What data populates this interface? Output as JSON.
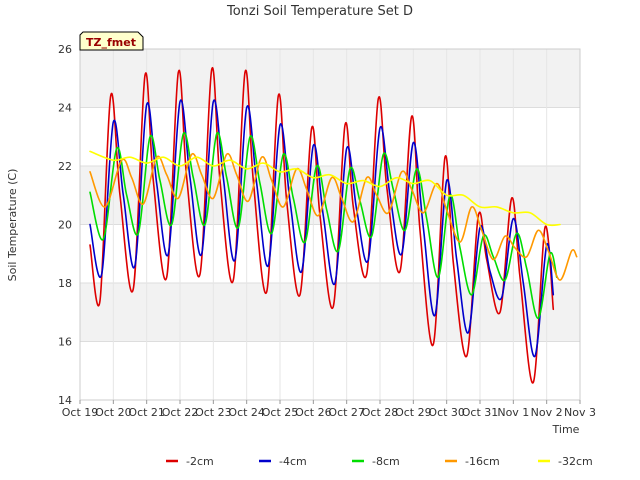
{
  "chart_data": {
    "type": "line",
    "title": "Tonzi Soil Temperature Set D",
    "xlabel": "Time",
    "ylabel": "Soil Temperature (C)",
    "badge": "TZ_fmet",
    "ylim": [
      14,
      26
    ],
    "yticks": [
      14,
      16,
      18,
      20,
      22,
      24,
      26
    ],
    "xlim": [
      0,
      15
    ],
    "xticks": [
      {
        "x": 0,
        "label": "Oct 19"
      },
      {
        "x": 1,
        "label": "Oct 20"
      },
      {
        "x": 2,
        "label": "Oct 21"
      },
      {
        "x": 3,
        "label": "Oct 22"
      },
      {
        "x": 4,
        "label": "Oct 23"
      },
      {
        "x": 5,
        "label": "Oct 24"
      },
      {
        "x": 6,
        "label": "Oct 25"
      },
      {
        "x": 7,
        "label": "Oct 26"
      },
      {
        "x": 8,
        "label": "Oct 27"
      },
      {
        "x": 9,
        "label": "Oct 28"
      },
      {
        "x": 10,
        "label": "Oct 29"
      },
      {
        "x": 11,
        "label": "Oct 30"
      },
      {
        "x": 12,
        "label": "Oct 31"
      },
      {
        "x": 13,
        "label": "Nov 1"
      },
      {
        "x": 14,
        "label": "Nov 2"
      },
      {
        "x": 15,
        "label": "Nov 3"
      }
    ],
    "grid": true,
    "legend_placement": "bottom",
    "series": [
      {
        "name": "-2cm",
        "color": "#dd0000",
        "points": [
          [
            0.3,
            19.3
          ],
          [
            0.6,
            17.4
          ],
          [
            0.92,
            24.4
          ],
          [
            1.2,
            21.0
          ],
          [
            1.6,
            17.8
          ],
          [
            1.95,
            25.1
          ],
          [
            2.2,
            21.5
          ],
          [
            2.6,
            18.2
          ],
          [
            2.95,
            25.2
          ],
          [
            3.2,
            21.6
          ],
          [
            3.6,
            18.3
          ],
          [
            3.95,
            25.3
          ],
          [
            4.2,
            21.5
          ],
          [
            4.6,
            18.1
          ],
          [
            4.95,
            25.2
          ],
          [
            5.2,
            21.5
          ],
          [
            5.6,
            17.7
          ],
          [
            5.95,
            24.4
          ],
          [
            6.2,
            20.8
          ],
          [
            6.6,
            17.6
          ],
          [
            6.95,
            23.3
          ],
          [
            7.2,
            20.3
          ],
          [
            7.6,
            17.2
          ],
          [
            7.95,
            23.4
          ],
          [
            8.2,
            20.6
          ],
          [
            8.6,
            18.3
          ],
          [
            8.95,
            24.3
          ],
          [
            9.2,
            21.3
          ],
          [
            9.6,
            18.4
          ],
          [
            9.95,
            23.7
          ],
          [
            10.2,
            19.8
          ],
          [
            10.6,
            15.9
          ],
          [
            10.95,
            22.3
          ],
          [
            11.2,
            18.7
          ],
          [
            11.6,
            15.5
          ],
          [
            11.95,
            20.3
          ],
          [
            12.2,
            18.8
          ],
          [
            12.6,
            17.0
          ],
          [
            12.95,
            20.9
          ],
          [
            13.2,
            18.2
          ],
          [
            13.6,
            14.6
          ],
          [
            13.95,
            19.9
          ],
          [
            14.2,
            17.1
          ]
        ]
      },
      {
        "name": "-4cm",
        "color": "#0000cc",
        "points": [
          [
            0.3,
            20.0
          ],
          [
            0.65,
            18.3
          ],
          [
            1.0,
            23.5
          ],
          [
            1.3,
            21.0
          ],
          [
            1.65,
            18.6
          ],
          [
            2.0,
            24.1
          ],
          [
            2.3,
            21.4
          ],
          [
            2.65,
            19.0
          ],
          [
            3.0,
            24.2
          ],
          [
            3.3,
            21.6
          ],
          [
            3.65,
            19.0
          ],
          [
            4.0,
            24.2
          ],
          [
            4.3,
            21.6
          ],
          [
            4.65,
            18.8
          ],
          [
            5.0,
            24.0
          ],
          [
            5.3,
            21.4
          ],
          [
            5.65,
            18.6
          ],
          [
            6.0,
            23.4
          ],
          [
            6.3,
            20.8
          ],
          [
            6.65,
            18.4
          ],
          [
            7.0,
            22.7
          ],
          [
            7.3,
            20.3
          ],
          [
            7.65,
            18.0
          ],
          [
            8.0,
            22.6
          ],
          [
            8.3,
            20.5
          ],
          [
            8.65,
            18.8
          ],
          [
            9.0,
            23.3
          ],
          [
            9.3,
            21.0
          ],
          [
            9.65,
            19.0
          ],
          [
            10.0,
            22.8
          ],
          [
            10.3,
            19.9
          ],
          [
            10.65,
            16.9
          ],
          [
            11.0,
            21.5
          ],
          [
            11.3,
            18.8
          ],
          [
            11.65,
            16.3
          ],
          [
            12.0,
            19.9
          ],
          [
            12.3,
            18.4
          ],
          [
            12.65,
            17.5
          ],
          [
            13.0,
            20.2
          ],
          [
            13.3,
            18.0
          ],
          [
            13.65,
            15.5
          ],
          [
            14.0,
            19.3
          ],
          [
            14.2,
            17.6
          ]
        ]
      },
      {
        "name": "-8cm",
        "color": "#00dd00",
        "points": [
          [
            0.3,
            21.1
          ],
          [
            0.7,
            19.5
          ],
          [
            1.1,
            22.6
          ],
          [
            1.4,
            21.0
          ],
          [
            1.75,
            19.7
          ],
          [
            2.1,
            23.0
          ],
          [
            2.4,
            21.5
          ],
          [
            2.75,
            20.0
          ],
          [
            3.1,
            23.1
          ],
          [
            3.4,
            21.6
          ],
          [
            3.75,
            20.0
          ],
          [
            4.1,
            23.1
          ],
          [
            4.4,
            21.6
          ],
          [
            4.75,
            19.9
          ],
          [
            5.1,
            23.0
          ],
          [
            5.4,
            21.4
          ],
          [
            5.75,
            19.7
          ],
          [
            6.1,
            22.4
          ],
          [
            6.4,
            20.9
          ],
          [
            6.75,
            19.4
          ],
          [
            7.1,
            22.0
          ],
          [
            7.4,
            20.5
          ],
          [
            7.75,
            19.1
          ],
          [
            8.1,
            21.9
          ],
          [
            8.4,
            20.8
          ],
          [
            8.75,
            19.6
          ],
          [
            9.1,
            22.4
          ],
          [
            9.4,
            21.2
          ],
          [
            9.75,
            19.8
          ],
          [
            10.1,
            21.9
          ],
          [
            10.4,
            20.2
          ],
          [
            10.75,
            18.2
          ],
          [
            11.1,
            21.0
          ],
          [
            11.4,
            19.2
          ],
          [
            11.75,
            17.6
          ],
          [
            12.1,
            19.6
          ],
          [
            12.4,
            18.9
          ],
          [
            12.75,
            18.1
          ],
          [
            13.1,
            19.7
          ],
          [
            13.4,
            18.5
          ],
          [
            13.75,
            16.8
          ],
          [
            14.1,
            19.0
          ],
          [
            14.3,
            18.2
          ]
        ]
      },
      {
        "name": "-16cm",
        "color": "#ff9900",
        "points": [
          [
            0.3,
            21.8
          ],
          [
            0.75,
            20.6
          ],
          [
            1.25,
            22.2
          ],
          [
            1.55,
            21.6
          ],
          [
            1.9,
            20.7
          ],
          [
            2.3,
            22.3
          ],
          [
            2.6,
            21.7
          ],
          [
            2.95,
            20.9
          ],
          [
            3.35,
            22.4
          ],
          [
            3.65,
            21.7
          ],
          [
            4.0,
            20.9
          ],
          [
            4.4,
            22.4
          ],
          [
            4.7,
            21.7
          ],
          [
            5.05,
            20.8
          ],
          [
            5.45,
            22.3
          ],
          [
            5.75,
            21.5
          ],
          [
            6.1,
            20.6
          ],
          [
            6.5,
            21.9
          ],
          [
            6.8,
            21.2
          ],
          [
            7.15,
            20.3
          ],
          [
            7.55,
            21.6
          ],
          [
            7.85,
            20.9
          ],
          [
            8.2,
            20.1
          ],
          [
            8.6,
            21.6
          ],
          [
            8.9,
            21.0
          ],
          [
            9.25,
            20.4
          ],
          [
            9.65,
            21.8
          ],
          [
            9.95,
            21.2
          ],
          [
            10.3,
            20.4
          ],
          [
            10.7,
            21.4
          ],
          [
            11.0,
            20.5
          ],
          [
            11.4,
            19.4
          ],
          [
            11.75,
            20.6
          ],
          [
            12.05,
            19.8
          ],
          [
            12.4,
            18.8
          ],
          [
            12.75,
            19.6
          ],
          [
            13.05,
            19.2
          ],
          [
            13.4,
            18.9
          ],
          [
            13.75,
            19.8
          ],
          [
            14.05,
            19.1
          ],
          [
            14.4,
            18.1
          ],
          [
            14.75,
            19.1
          ],
          [
            14.9,
            18.9
          ]
        ]
      },
      {
        "name": "-32cm",
        "color": "#ffff00",
        "points": [
          [
            0.3,
            22.5
          ],
          [
            1.0,
            22.2
          ],
          [
            1.5,
            22.3
          ],
          [
            2.0,
            22.1
          ],
          [
            2.5,
            22.3
          ],
          [
            3.0,
            22.0
          ],
          [
            3.5,
            22.3
          ],
          [
            4.0,
            22.0
          ],
          [
            4.5,
            22.2
          ],
          [
            5.0,
            21.9
          ],
          [
            5.5,
            22.1
          ],
          [
            6.0,
            21.8
          ],
          [
            6.5,
            21.9
          ],
          [
            7.0,
            21.6
          ],
          [
            7.5,
            21.7
          ],
          [
            8.0,
            21.4
          ],
          [
            8.5,
            21.5
          ],
          [
            9.0,
            21.3
          ],
          [
            9.5,
            21.6
          ],
          [
            10.0,
            21.4
          ],
          [
            10.5,
            21.5
          ],
          [
            11.0,
            21.0
          ],
          [
            11.5,
            21.0
          ],
          [
            12.0,
            20.6
          ],
          [
            12.5,
            20.6
          ],
          [
            13.0,
            20.4
          ],
          [
            13.5,
            20.4
          ],
          [
            14.0,
            20.0
          ],
          [
            14.4,
            20.0
          ]
        ]
      }
    ]
  }
}
